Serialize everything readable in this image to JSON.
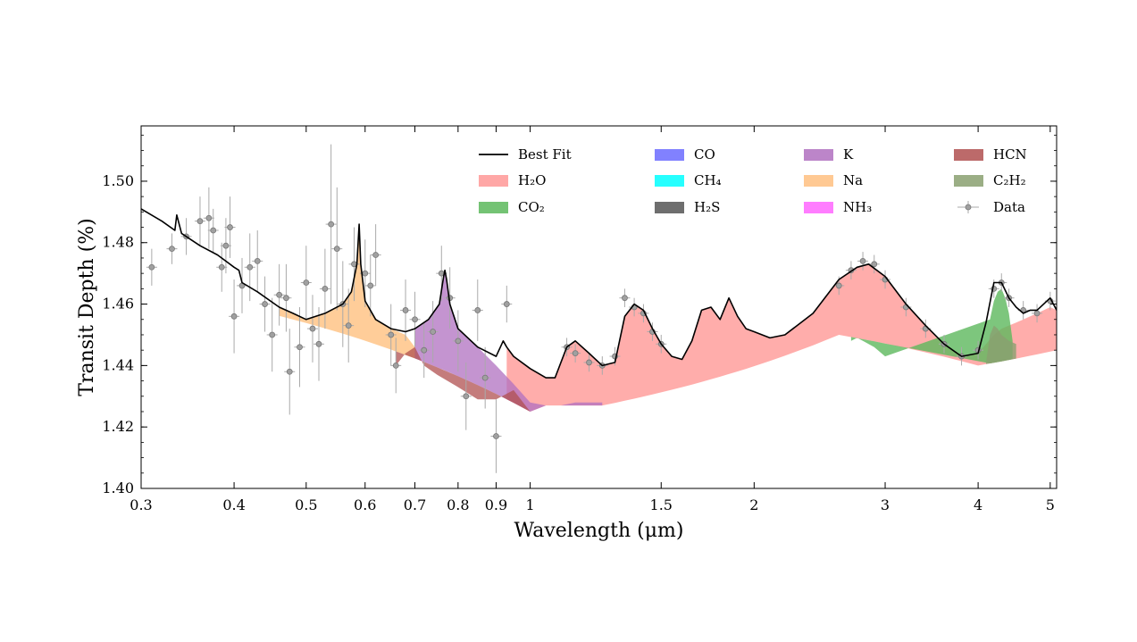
{
  "chart_data": {
    "type": "area",
    "title": "",
    "xlabel": "Wavelength (μm)",
    "ylabel": "Transit Depth (%)",
    "xscale": "log",
    "xlim": [
      0.3,
      5.1
    ],
    "ylim": [
      1.4,
      1.518
    ],
    "grid": false,
    "legend_position": "top-right",
    "xticks": [
      {
        "value": 0.3,
        "label": "0.3"
      },
      {
        "value": 0.4,
        "label": "0.4"
      },
      {
        "value": 0.5,
        "label": "0.5"
      },
      {
        "value": 0.6,
        "label": "0.6"
      },
      {
        "value": 0.7,
        "label": "0.7"
      },
      {
        "value": 0.8,
        "label": "0.8"
      },
      {
        "value": 0.9,
        "label": "0.9"
      },
      {
        "value": 1,
        "label": "1"
      },
      {
        "value": 1.5,
        "label": "1.5"
      },
      {
        "value": 2,
        "label": "2"
      },
      {
        "value": 3,
        "label": "3"
      },
      {
        "value": 4,
        "label": "4"
      },
      {
        "value": 5,
        "label": "5"
      }
    ],
    "yticks": [
      {
        "value": 1.4,
        "label": "1.40"
      },
      {
        "value": 1.42,
        "label": "1.42"
      },
      {
        "value": 1.44,
        "label": "1.44"
      },
      {
        "value": 1.46,
        "label": "1.46"
      },
      {
        "value": 1.48,
        "label": "1.48"
      },
      {
        "value": 1.5,
        "label": "1.50"
      }
    ],
    "legend": [
      {
        "key": "bestfit",
        "label": "Best Fit",
        "color": "#000000",
        "kind": "line"
      },
      {
        "key": "h2o",
        "label": "H₂O",
        "color": "#ff9896",
        "kind": "patch"
      },
      {
        "key": "co2",
        "label": "CO₂",
        "color": "#5cb85c",
        "kind": "patch"
      },
      {
        "key": "co",
        "label": "CO",
        "color": "#6b6bff",
        "kind": "patch"
      },
      {
        "key": "ch4",
        "label": "CH₄",
        "color": "#00ffff",
        "kind": "patch"
      },
      {
        "key": "h2s",
        "label": "H₂S",
        "color": "#555555",
        "kind": "patch"
      },
      {
        "key": "k",
        "label": "K",
        "color": "#b070c0",
        "kind": "patch"
      },
      {
        "key": "na",
        "label": "Na",
        "color": "#ffc080",
        "kind": "patch"
      },
      {
        "key": "nh3",
        "label": "NH₃",
        "color": "#ff66ff",
        "kind": "patch"
      },
      {
        "key": "hcn",
        "label": "HCN",
        "color": "#b05050",
        "kind": "patch"
      },
      {
        "key": "c2h2",
        "label": "C₂H₂",
        "color": "#8aa070",
        "kind": "patch"
      },
      {
        "key": "data",
        "label": "Data",
        "color": "#808080",
        "kind": "marker"
      }
    ],
    "series": [
      {
        "name": "Best Fit",
        "x": [
          0.3,
          0.32,
          0.333,
          0.335,
          0.34,
          0.36,
          0.38,
          0.4,
          0.406,
          0.41,
          0.43,
          0.46,
          0.48,
          0.5,
          0.53,
          0.56,
          0.575,
          0.585,
          0.589,
          0.592,
          0.6,
          0.62,
          0.65,
          0.68,
          0.7,
          0.73,
          0.755,
          0.765,
          0.768,
          0.772,
          0.78,
          0.8,
          0.85,
          0.9,
          0.92,
          0.93,
          0.95,
          1.0,
          1.05,
          1.08,
          1.12,
          1.15,
          1.2,
          1.25,
          1.3,
          1.34,
          1.38,
          1.42,
          1.46,
          1.5,
          1.55,
          1.6,
          1.65,
          1.7,
          1.75,
          1.8,
          1.85,
          1.9,
          1.95,
          2.0,
          2.1,
          2.2,
          2.4,
          2.6,
          2.75,
          2.85,
          3.0,
          3.2,
          3.4,
          3.6,
          3.8,
          4.0,
          4.1,
          4.2,
          4.3,
          4.4,
          4.5,
          4.6,
          4.7,
          4.8,
          5.0,
          5.1
        ],
        "y": [
          1.491,
          1.487,
          1.484,
          1.489,
          1.483,
          1.479,
          1.476,
          1.472,
          1.471,
          1.467,
          1.464,
          1.459,
          1.457,
          1.455,
          1.457,
          1.46,
          1.464,
          1.473,
          1.486,
          1.473,
          1.461,
          1.455,
          1.452,
          1.451,
          1.452,
          1.455,
          1.46,
          1.469,
          1.471,
          1.468,
          1.46,
          1.452,
          1.446,
          1.443,
          1.448,
          1.446,
          1.443,
          1.439,
          1.436,
          1.436,
          1.446,
          1.448,
          1.444,
          1.44,
          1.441,
          1.456,
          1.46,
          1.458,
          1.452,
          1.447,
          1.443,
          1.442,
          1.448,
          1.458,
          1.459,
          1.455,
          1.462,
          1.456,
          1.452,
          1.451,
          1.449,
          1.45,
          1.457,
          1.468,
          1.472,
          1.473,
          1.469,
          1.46,
          1.453,
          1.447,
          1.443,
          1.444,
          1.454,
          1.467,
          1.467,
          1.462,
          1.459,
          1.457,
          1.458,
          1.458,
          1.462,
          1.458
        ]
      },
      {
        "name": "H₂O",
        "x": [
          0.93,
          0.95,
          1.0,
          1.05,
          1.08,
          1.12,
          1.15,
          1.2,
          1.25,
          1.3,
          1.34,
          1.38,
          1.42,
          1.46,
          1.5,
          1.55,
          1.6,
          1.65,
          1.7,
          1.75,
          1.8,
          1.85,
          1.9,
          1.95,
          2.0,
          2.1,
          2.2,
          2.4,
          2.6,
          2.75,
          2.85,
          3.0,
          3.2,
          3.4,
          3.6,
          3.8,
          4.0,
          4.1,
          4.2,
          4.3,
          4.4,
          4.5,
          4.6,
          4.7,
          4.8,
          5.0,
          5.1
        ],
        "y": [
          1.446,
          1.443,
          1.439,
          1.436,
          1.436,
          1.446,
          1.448,
          1.444,
          1.44,
          1.441,
          1.456,
          1.46,
          1.458,
          1.452,
          1.447,
          1.443,
          1.442,
          1.448,
          1.458,
          1.459,
          1.455,
          1.462,
          1.456,
          1.452,
          1.451,
          1.449,
          1.45,
          1.457,
          1.468,
          1.472,
          1.473,
          1.469,
          1.46,
          1.453,
          1.447,
          1.443,
          1.444,
          1.447,
          1.45,
          1.452,
          1.453,
          1.454,
          1.455,
          1.456,
          1.457,
          1.459,
          1.458
        ]
      },
      {
        "name": "Na",
        "x": [
          0.46,
          0.5,
          0.53,
          0.56,
          0.575,
          0.585,
          0.589,
          0.592,
          0.6,
          0.62,
          0.65,
          0.68,
          0.7
        ],
        "y": [
          1.459,
          1.455,
          1.457,
          1.46,
          1.464,
          1.473,
          1.486,
          1.473,
          1.461,
          1.455,
          1.452,
          1.45,
          1.446
        ]
      },
      {
        "name": "K",
        "x": [
          0.7,
          0.73,
          0.755,
          0.765,
          0.768,
          0.772,
          0.78,
          0.8,
          0.85,
          0.9,
          0.95,
          1.0,
          1.05,
          1.1,
          1.15,
          1.2,
          1.25
        ],
        "y": [
          1.452,
          1.455,
          1.46,
          1.469,
          1.471,
          1.468,
          1.46,
          1.452,
          1.446,
          1.44,
          1.434,
          1.428,
          1.427,
          1.427,
          1.428,
          1.428,
          1.428
        ]
      },
      {
        "name": "CO₂",
        "x": [
          2.7,
          2.75,
          2.8,
          2.9,
          3.0,
          4.15,
          4.2,
          4.25,
          4.3,
          4.35,
          4.4,
          4.45
        ],
        "y": [
          1.448,
          1.449,
          1.448,
          1.446,
          1.443,
          1.455,
          1.461,
          1.464,
          1.465,
          1.462,
          1.457,
          1.448
        ]
      },
      {
        "name": "HCN",
        "x": [
          0.66,
          0.68,
          0.7,
          0.72,
          0.75,
          0.8,
          0.85,
          0.9,
          0.95,
          1.0
        ],
        "y": [
          1.44,
          1.444,
          1.446,
          1.44,
          1.437,
          1.433,
          1.429,
          1.429,
          1.432,
          1.425
        ]
      },
      {
        "name": "C₂H₂",
        "x": [
          4.1,
          4.15,
          4.2,
          4.25,
          4.3,
          4.4,
          4.5
        ],
        "y": [
          1.441,
          1.45,
          1.453,
          1.452,
          1.45,
          1.448,
          1.447
        ]
      }
    ],
    "data_points": [
      {
        "x": 0.31,
        "y": 1.472,
        "err": 0.006
      },
      {
        "x": 0.33,
        "y": 1.478,
        "err": 0.005
      },
      {
        "x": 0.345,
        "y": 1.482,
        "err": 0.006
      },
      {
        "x": 0.36,
        "y": 1.487,
        "err": 0.008
      },
      {
        "x": 0.37,
        "y": 1.488,
        "err": 0.01
      },
      {
        "x": 0.375,
        "y": 1.484,
        "err": 0.007
      },
      {
        "x": 0.385,
        "y": 1.472,
        "err": 0.008
      },
      {
        "x": 0.39,
        "y": 1.479,
        "err": 0.009
      },
      {
        "x": 0.395,
        "y": 1.485,
        "err": 0.01
      },
      {
        "x": 0.4,
        "y": 1.456,
        "err": 0.012
      },
      {
        "x": 0.41,
        "y": 1.466,
        "err": 0.009
      },
      {
        "x": 0.42,
        "y": 1.472,
        "err": 0.011
      },
      {
        "x": 0.43,
        "y": 1.474,
        "err": 0.01
      },
      {
        "x": 0.44,
        "y": 1.46,
        "err": 0.009
      },
      {
        "x": 0.45,
        "y": 1.45,
        "err": 0.012
      },
      {
        "x": 0.46,
        "y": 1.463,
        "err": 0.01
      },
      {
        "x": 0.47,
        "y": 1.462,
        "err": 0.011
      },
      {
        "x": 0.475,
        "y": 1.438,
        "err": 0.014
      },
      {
        "x": 0.49,
        "y": 1.446,
        "err": 0.013
      },
      {
        "x": 0.5,
        "y": 1.467,
        "err": 0.012
      },
      {
        "x": 0.51,
        "y": 1.452,
        "err": 0.011
      },
      {
        "x": 0.52,
        "y": 1.447,
        "err": 0.012
      },
      {
        "x": 0.53,
        "y": 1.465,
        "err": 0.013
      },
      {
        "x": 0.54,
        "y": 1.486,
        "err": 0.026
      },
      {
        "x": 0.55,
        "y": 1.478,
        "err": 0.02
      },
      {
        "x": 0.56,
        "y": 1.46,
        "err": 0.014
      },
      {
        "x": 0.57,
        "y": 1.453,
        "err": 0.012
      },
      {
        "x": 0.58,
        "y": 1.473,
        "err": 0.012
      },
      {
        "x": 0.6,
        "y": 1.47,
        "err": 0.011
      },
      {
        "x": 0.61,
        "y": 1.466,
        "err": 0.01
      },
      {
        "x": 0.62,
        "y": 1.476,
        "err": 0.01
      },
      {
        "x": 0.65,
        "y": 1.45,
        "err": 0.01
      },
      {
        "x": 0.66,
        "y": 1.44,
        "err": 0.009
      },
      {
        "x": 0.68,
        "y": 1.458,
        "err": 0.01
      },
      {
        "x": 0.7,
        "y": 1.455,
        "err": 0.009
      },
      {
        "x": 0.72,
        "y": 1.445,
        "err": 0.009
      },
      {
        "x": 0.74,
        "y": 1.451,
        "err": 0.01
      },
      {
        "x": 0.76,
        "y": 1.47,
        "err": 0.009
      },
      {
        "x": 0.78,
        "y": 1.462,
        "err": 0.01
      },
      {
        "x": 0.8,
        "y": 1.448,
        "err": 0.01
      },
      {
        "x": 0.82,
        "y": 1.43,
        "err": 0.011
      },
      {
        "x": 0.85,
        "y": 1.458,
        "err": 0.01
      },
      {
        "x": 0.87,
        "y": 1.436,
        "err": 0.01
      },
      {
        "x": 0.9,
        "y": 1.417,
        "err": 0.012
      },
      {
        "x": 0.93,
        "y": 1.46,
        "err": 0.006
      },
      {
        "x": 1.12,
        "y": 1.446,
        "err": 0.003
      },
      {
        "x": 1.15,
        "y": 1.444,
        "err": 0.003
      },
      {
        "x": 1.2,
        "y": 1.441,
        "err": 0.003
      },
      {
        "x": 1.25,
        "y": 1.44,
        "err": 0.003
      },
      {
        "x": 1.3,
        "y": 1.443,
        "err": 0.003
      },
      {
        "x": 1.34,
        "y": 1.462,
        "err": 0.003
      },
      {
        "x": 1.38,
        "y": 1.459,
        "err": 0.003
      },
      {
        "x": 1.42,
        "y": 1.457,
        "err": 0.003
      },
      {
        "x": 1.46,
        "y": 1.451,
        "err": 0.003
      },
      {
        "x": 1.5,
        "y": 1.447,
        "err": 0.003
      },
      {
        "x": 2.6,
        "y": 1.466,
        "err": 0.003
      },
      {
        "x": 2.7,
        "y": 1.471,
        "err": 0.003
      },
      {
        "x": 2.8,
        "y": 1.474,
        "err": 0.003
      },
      {
        "x": 2.9,
        "y": 1.473,
        "err": 0.003
      },
      {
        "x": 3.0,
        "y": 1.468,
        "err": 0.003
      },
      {
        "x": 3.2,
        "y": 1.459,
        "err": 0.003
      },
      {
        "x": 3.4,
        "y": 1.452,
        "err": 0.003
      },
      {
        "x": 3.6,
        "y": 1.447,
        "err": 0.003
      },
      {
        "x": 3.8,
        "y": 1.443,
        "err": 0.003
      },
      {
        "x": 4.0,
        "y": 1.445,
        "err": 0.003
      },
      {
        "x": 4.2,
        "y": 1.465,
        "err": 0.003
      },
      {
        "x": 4.3,
        "y": 1.467,
        "err": 0.003
      },
      {
        "x": 4.4,
        "y": 1.462,
        "err": 0.003
      },
      {
        "x": 4.6,
        "y": 1.458,
        "err": 0.003
      },
      {
        "x": 4.8,
        "y": 1.457,
        "err": 0.003
      },
      {
        "x": 5.0,
        "y": 1.461,
        "err": 0.003
      }
    ]
  }
}
